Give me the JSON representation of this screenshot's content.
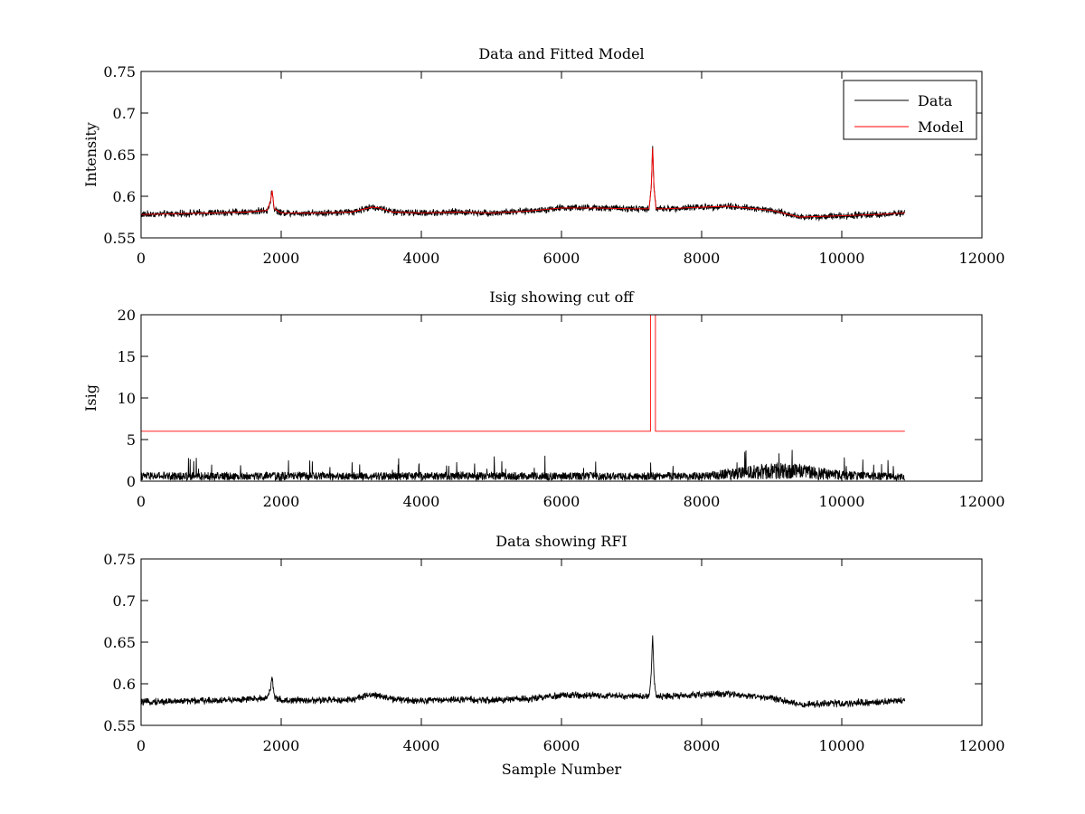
{
  "figure": {
    "background": "#ffffff"
  },
  "chart_data": [
    {
      "type": "line",
      "title": "Data and Fitted Model",
      "xlabel": "",
      "ylabel": "Intensity",
      "xlim": [
        0,
        12000
      ],
      "ylim": [
        0.55,
        0.75
      ],
      "xticks": [
        0,
        2000,
        4000,
        6000,
        8000,
        10000,
        12000
      ],
      "yticks": [
        0.55,
        0.6,
        0.65,
        0.7,
        0.75
      ],
      "xtick_labels": [
        "0",
        "2000",
        "4000",
        "6000",
        "8000",
        "10000",
        "12000"
      ],
      "ytick_labels": [
        "0.55",
        "0.6",
        "0.65",
        "0.7",
        "0.75"
      ],
      "grid": false,
      "legend": {
        "placement": "top-right",
        "entries": [
          "Data",
          "Model"
        ]
      },
      "series": [
        {
          "name": "Data",
          "color": "#000000",
          "noise_amplitude": 0.005,
          "x": [
            0,
            500,
            1000,
            1500,
            1800,
            1850,
            1870,
            1900,
            2000,
            2500,
            3000,
            3300,
            3400,
            3600,
            4000,
            4500,
            5000,
            5500,
            6000,
            6500,
            7000,
            7250,
            7280,
            7300,
            7320,
            7350,
            7500,
            8000,
            8400,
            9000,
            9400,
            9800,
            10500,
            10900
          ],
          "values": [
            0.578,
            0.579,
            0.58,
            0.581,
            0.583,
            0.595,
            0.607,
            0.585,
            0.58,
            0.58,
            0.581,
            0.587,
            0.586,
            0.581,
            0.58,
            0.581,
            0.58,
            0.582,
            0.586,
            0.586,
            0.585,
            0.585,
            0.61,
            0.658,
            0.61,
            0.585,
            0.585,
            0.587,
            0.588,
            0.583,
            0.575,
            0.576,
            0.578,
            0.58
          ]
        },
        {
          "name": "Model",
          "color": "#ff0000",
          "noise_amplitude": 0,
          "x": [
            0,
            500,
            1000,
            1500,
            1800,
            1850,
            1870,
            1900,
            2000,
            2500,
            3000,
            3300,
            3400,
            3600,
            4000,
            4500,
            5000,
            5500,
            6000,
            6500,
            7000,
            7250,
            7280,
            7300,
            7320,
            7350,
            7500,
            8000,
            8400,
            9000,
            9400,
            9800,
            10500,
            10900
          ],
          "values": [
            0.578,
            0.579,
            0.58,
            0.581,
            0.583,
            0.595,
            0.607,
            0.585,
            0.58,
            0.58,
            0.581,
            0.587,
            0.586,
            0.581,
            0.58,
            0.581,
            0.58,
            0.582,
            0.586,
            0.586,
            0.585,
            0.585,
            0.61,
            0.658,
            0.61,
            0.585,
            0.585,
            0.587,
            0.588,
            0.583,
            0.575,
            0.576,
            0.578,
            0.58
          ]
        }
      ]
    },
    {
      "type": "line",
      "title": "Isig showing cut off",
      "xlabel": "",
      "ylabel": "Isig",
      "xlim": [
        0,
        12000
      ],
      "ylim": [
        0,
        20
      ],
      "xticks": [
        0,
        2000,
        4000,
        6000,
        8000,
        10000,
        12000
      ],
      "yticks": [
        0,
        5,
        10,
        15,
        20
      ],
      "xtick_labels": [
        "0",
        "2000",
        "4000",
        "6000",
        "8000",
        "10000",
        "12000"
      ],
      "ytick_labels": [
        "0",
        "5",
        "10",
        "15",
        "20"
      ],
      "grid": false,
      "series": [
        {
          "color": "#000000",
          "noise_amplitude": 1.2,
          "x": [
            0,
            2000,
            4000,
            6000,
            7000,
            8000,
            8500,
            9000,
            9500,
            10000,
            10900
          ],
          "values": [
            0.6,
            0.6,
            0.6,
            0.6,
            0.6,
            0.6,
            0.9,
            1.3,
            1.1,
            0.7,
            0.5
          ]
        },
        {
          "color": "#ff0000",
          "noise_amplitude": 0,
          "x": [
            0,
            7270,
            7270,
            7280,
            7330,
            7340,
            7340,
            10900
          ],
          "values": [
            6,
            6,
            20,
            20,
            20,
            20,
            6,
            6
          ]
        }
      ]
    },
    {
      "type": "line",
      "title": "Data showing RFI",
      "xlabel": "Sample Number",
      "ylabel": "",
      "xlim": [
        0,
        12000
      ],
      "ylim": [
        0.55,
        0.75
      ],
      "xticks": [
        0,
        2000,
        4000,
        6000,
        8000,
        10000,
        12000
      ],
      "yticks": [
        0.55,
        0.6,
        0.65,
        0.7,
        0.75
      ],
      "xtick_labels": [
        "0",
        "2000",
        "4000",
        "6000",
        "8000",
        "10000",
        "12000"
      ],
      "ytick_labels": [
        "0.55",
        "0.6",
        "0.65",
        "0.7",
        "0.75"
      ],
      "grid": false,
      "series": [
        {
          "color": "#000000",
          "noise_amplitude": 0.005,
          "x": [
            0,
            500,
            1000,
            1500,
            1800,
            1850,
            1870,
            1900,
            2000,
            2500,
            3000,
            3300,
            3400,
            3600,
            4000,
            4500,
            5000,
            5500,
            6000,
            6500,
            7000,
            7250,
            7280,
            7300,
            7320,
            7350,
            7500,
            8000,
            8400,
            9000,
            9400,
            9800,
            10500,
            10900
          ],
          "values": [
            0.578,
            0.579,
            0.58,
            0.581,
            0.583,
            0.595,
            0.607,
            0.585,
            0.58,
            0.58,
            0.581,
            0.587,
            0.586,
            0.581,
            0.58,
            0.581,
            0.58,
            0.582,
            0.586,
            0.586,
            0.585,
            0.585,
            0.61,
            0.658,
            0.61,
            0.585,
            0.585,
            0.587,
            0.588,
            0.583,
            0.575,
            0.576,
            0.578,
            0.58
          ]
        }
      ]
    }
  ]
}
